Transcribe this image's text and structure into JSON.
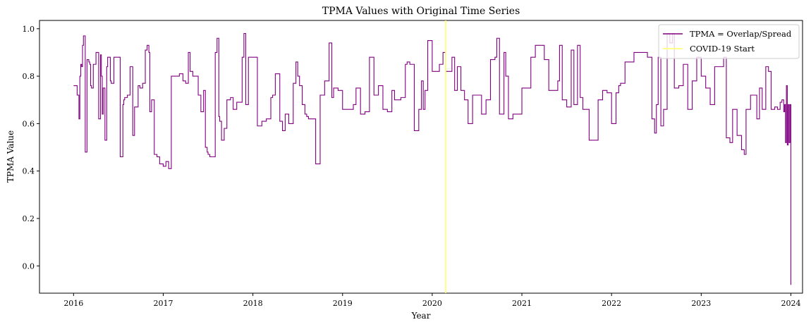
{
  "chart_data": {
    "type": "line",
    "title": "TPMA Values with Original Time Series",
    "xlabel": "Year",
    "ylabel": "TPMA Value",
    "xlim": [
      2015.62,
      2024.13
    ],
    "ylim": [
      -0.115,
      1.035
    ],
    "x_ticks": [
      "2016",
      "2017",
      "2018",
      "2019",
      "2020",
      "2021",
      "2022",
      "2023",
      "2024"
    ],
    "y_ticks": [
      "0.0",
      "0.2",
      "0.4",
      "0.6",
      "0.8",
      "1.0"
    ],
    "grid": false,
    "legend_position": "top-right",
    "colors": {
      "series": "#800080",
      "event": "#ffff66"
    },
    "series": [
      {
        "name": "TPMA = Overlap/Spread",
        "x": [
          2016.0,
          2016.04,
          2016.06,
          2016.07,
          2016.08,
          2016.09,
          2016.1,
          2016.11,
          2016.13,
          2016.15,
          2016.17,
          2016.18,
          2016.19,
          2016.2,
          2016.22,
          2016.25,
          2016.28,
          2016.3,
          2016.31,
          2016.32,
          2016.33,
          2016.35,
          2016.37,
          2016.38,
          2016.4,
          2016.41,
          2016.42,
          2016.45,
          2016.47,
          2016.48,
          2016.52,
          2016.55,
          2016.56,
          2016.57,
          2016.6,
          2016.63,
          2016.66,
          2016.68,
          2016.72,
          2016.74,
          2016.77,
          2016.8,
          2016.82,
          2016.84,
          2016.85,
          2016.87,
          2016.9,
          2016.93,
          2016.96,
          2017.0,
          2017.03,
          2017.06,
          2017.09,
          2017.1,
          2017.14,
          2017.18,
          2017.22,
          2017.25,
          2017.28,
          2017.3,
          2017.33,
          2017.36,
          2017.39,
          2017.42,
          2017.45,
          2017.47,
          2017.49,
          2017.5,
          2017.52,
          2017.55,
          2017.58,
          2017.6,
          2017.62,
          2017.63,
          2017.65,
          2017.68,
          2017.71,
          2017.75,
          2017.78,
          2017.82,
          2017.85,
          2017.88,
          2017.9,
          2017.92,
          2017.95,
          2018.0,
          2018.05,
          2018.1,
          2018.15,
          2018.2,
          2018.22,
          2018.25,
          2018.3,
          2018.33,
          2018.36,
          2018.4,
          2018.45,
          2018.48,
          2018.5,
          2018.52,
          2018.55,
          2018.58,
          2018.6,
          2018.62,
          2018.65,
          2018.7,
          2018.75,
          2018.8,
          2018.85,
          2018.88,
          2018.9,
          2018.95,
          2019.0,
          2019.05,
          2019.08,
          2019.12,
          2019.15,
          2019.2,
          2019.25,
          2019.3,
          2019.35,
          2019.4,
          2019.45,
          2019.5,
          2019.55,
          2019.58,
          2019.62,
          2019.65,
          2019.7,
          2019.72,
          2019.75,
          2019.8,
          2019.85,
          2019.88,
          2019.9,
          2019.92,
          2019.95,
          2020.0,
          2020.03,
          2020.05,
          2020.08,
          2020.12,
          2020.15,
          2020.2,
          2020.22,
          2020.25,
          2020.28,
          2020.32,
          2020.36,
          2020.4,
          2020.45,
          2020.48,
          2020.5,
          2020.55,
          2020.6,
          2020.65,
          2020.7,
          2020.72,
          2020.75,
          2020.8,
          2020.82,
          2020.85,
          2020.9,
          2020.95,
          2021.0,
          2021.05,
          2021.1,
          2021.15,
          2021.2,
          2021.25,
          2021.3,
          2021.33,
          2021.36,
          2021.4,
          2021.42,
          2021.45,
          2021.5,
          2021.55,
          2021.58,
          2021.62,
          2021.65,
          2021.68,
          2021.72,
          2021.75,
          2021.8,
          2021.85,
          2021.9,
          2021.95,
          2022.0,
          2022.03,
          2022.05,
          2022.08,
          2022.1,
          2022.15,
          2022.2,
          2022.25,
          2022.3,
          2022.33,
          2022.36,
          2022.4,
          2022.45,
          2022.48,
          2022.5,
          2022.52,
          2022.55,
          2022.58,
          2022.62,
          2022.65,
          2022.68,
          2022.7,
          2022.75,
          2022.8,
          2022.85,
          2022.9,
          2022.95,
          2023.0,
          2023.05,
          2023.1,
          2023.15,
          2023.2,
          2023.25,
          2023.28,
          2023.32,
          2023.35,
          2023.4,
          2023.45,
          2023.48,
          2023.5,
          2023.55,
          2023.6,
          2023.62,
          2023.65,
          2023.68,
          2023.72,
          2023.75,
          2023.78,
          2023.82,
          2023.85,
          2023.88,
          2023.9,
          2023.92,
          2023.93,
          2023.94,
          2023.95,
          2023.96,
          2023.97,
          2023.98,
          2023.99,
          2024.0
        ],
        "y": [
          0.76,
          0.72,
          0.62,
          0.8,
          0.85,
          0.84,
          0.93,
          0.97,
          0.48,
          0.87,
          0.86,
          0.85,
          0.76,
          0.75,
          0.85,
          0.9,
          0.62,
          0.89,
          0.8,
          0.64,
          0.75,
          0.53,
          0.84,
          0.88,
          0.88,
          0.78,
          0.77,
          0.88,
          0.88,
          0.88,
          0.46,
          0.68,
          0.7,
          0.71,
          0.72,
          0.84,
          0.55,
          0.67,
          0.76,
          0.75,
          0.77,
          0.91,
          0.93,
          0.9,
          0.65,
          0.7,
          0.47,
          0.46,
          0.43,
          0.42,
          0.44,
          0.41,
          0.8,
          0.8,
          0.8,
          0.81,
          0.78,
          0.77,
          0.9,
          0.82,
          0.8,
          0.8,
          0.72,
          0.65,
          0.74,
          0.5,
          0.48,
          0.47,
          0.46,
          0.46,
          0.9,
          0.96,
          0.63,
          0.61,
          0.53,
          0.58,
          0.7,
          0.71,
          0.66,
          0.69,
          0.69,
          0.88,
          0.98,
          0.68,
          0.88,
          0.88,
          0.59,
          0.61,
          0.62,
          0.71,
          0.72,
          0.81,
          0.61,
          0.57,
          0.64,
          0.6,
          0.77,
          0.86,
          0.8,
          0.76,
          0.68,
          0.64,
          0.63,
          0.62,
          0.62,
          0.43,
          0.72,
          0.78,
          0.94,
          0.71,
          0.75,
          0.74,
          0.66,
          0.66,
          0.66,
          0.68,
          0.75,
          0.64,
          0.65,
          0.88,
          0.72,
          0.76,
          0.66,
          0.65,
          0.74,
          0.7,
          0.7,
          0.71,
          0.85,
          0.86,
          0.85,
          0.57,
          0.66,
          0.78,
          0.66,
          0.74,
          0.95,
          0.82,
          0.82,
          0.82,
          0.85,
          0.9,
          0.82,
          0.82,
          0.88,
          0.74,
          0.84,
          0.74,
          0.7,
          0.6,
          0.72,
          0.72,
          0.72,
          0.64,
          0.7,
          0.87,
          0.88,
          0.96,
          0.64,
          0.9,
          0.8,
          0.62,
          0.64,
          0.64,
          0.75,
          0.75,
          0.88,
          0.93,
          0.93,
          0.87,
          0.74,
          0.74,
          0.74,
          0.78,
          0.93,
          0.7,
          0.67,
          0.91,
          0.68,
          0.93,
          0.71,
          0.66,
          0.66,
          0.53,
          0.53,
          0.7,
          0.74,
          0.73,
          0.6,
          0.6,
          0.73,
          0.76,
          0.77,
          0.86,
          0.86,
          0.9,
          0.9,
          0.9,
          0.9,
          0.88,
          0.62,
          0.56,
          0.68,
          0.88,
          0.59,
          0.66,
          0.98,
          0.94,
          0.98,
          0.75,
          0.76,
          0.85,
          0.66,
          0.78,
          0.88,
          0.8,
          0.75,
          0.68,
          0.84,
          0.84,
          0.88,
          0.54,
          0.52,
          0.66,
          0.55,
          0.49,
          0.47,
          0.66,
          0.72,
          0.72,
          0.62,
          0.75,
          0.66,
          0.84,
          0.82,
          0.66,
          0.67,
          0.66,
          0.69,
          0.7,
          0.65,
          0.68,
          0.52,
          0.76,
          0.51,
          0.68,
          0.52,
          0.68,
          -0.08
        ]
      },
      {
        "name": "COVID-19 Start",
        "event_x": 2020.15
      }
    ]
  }
}
